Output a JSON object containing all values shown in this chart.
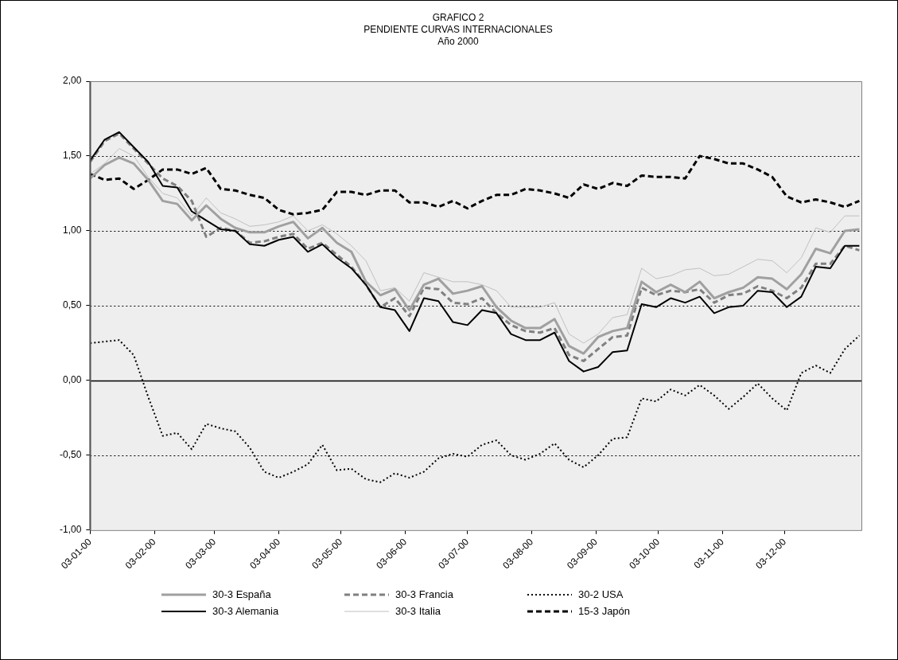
{
  "chart_data": {
    "type": "line",
    "title": "GRAFICO 2\nPENDIENTE CURVAS INTERNACIONALES\nAño 2000",
    "x": [
      "2000-01-03",
      "2000-01-10",
      "2000-01-17",
      "2000-01-24",
      "2000-01-31",
      "2000-02-07",
      "2000-02-14",
      "2000-02-21",
      "2000-02-28",
      "2000-03-06",
      "2000-03-13",
      "2000-03-20",
      "2000-03-27",
      "2000-04-03",
      "2000-04-10",
      "2000-04-17",
      "2000-04-24",
      "2000-05-01",
      "2000-05-08",
      "2000-05-15",
      "2000-05-22",
      "2000-05-29",
      "2000-06-05",
      "2000-06-12",
      "2000-06-19",
      "2000-06-26",
      "2000-07-03",
      "2000-07-10",
      "2000-07-17",
      "2000-07-24",
      "2000-07-31",
      "2000-08-07",
      "2000-08-14",
      "2000-08-21",
      "2000-08-28",
      "2000-09-04",
      "2000-09-11",
      "2000-09-18",
      "2000-09-25",
      "2000-10-02",
      "2000-10-09",
      "2000-10-16",
      "2000-10-23",
      "2000-10-30",
      "2000-11-06",
      "2000-11-13",
      "2000-11-20",
      "2000-11-27",
      "2000-12-04",
      "2000-12-11",
      "2000-12-18",
      "2000-12-25",
      "2001-01-01",
      "2001-01-08"
    ],
    "series": [
      {
        "name": "30-3 España",
        "color": "#a0a0a0",
        "line_style": "solid",
        "values": [
          1.35,
          1.44,
          1.49,
          1.45,
          1.34,
          1.2,
          1.18,
          1.07,
          1.17,
          1.08,
          1.02,
          0.99,
          0.99,
          1.03,
          1.06,
          0.95,
          1.02,
          0.92,
          0.86,
          0.66,
          0.57,
          0.61,
          0.47,
          0.64,
          0.68,
          0.58,
          0.6,
          0.63,
          0.49,
          0.4,
          0.35,
          0.35,
          0.41,
          0.23,
          0.18,
          0.29,
          0.33,
          0.35,
          0.66,
          0.59,
          0.64,
          0.59,
          0.66,
          0.55,
          0.59,
          0.62,
          0.69,
          0.68,
          0.61,
          0.71,
          0.88,
          0.85,
          1.0,
          1.01
        ]
      },
      {
        "name": "30-3 Alemania",
        "color": "#000000",
        "line_style": "solid",
        "values": [
          1.47,
          1.61,
          1.66,
          1.56,
          1.46,
          1.3,
          1.29,
          1.13,
          1.07,
          1.01,
          1.0,
          0.91,
          0.9,
          0.94,
          0.96,
          0.86,
          0.91,
          0.82,
          0.75,
          0.64,
          0.49,
          0.47,
          0.33,
          0.55,
          0.53,
          0.39,
          0.37,
          0.47,
          0.45,
          0.31,
          0.27,
          0.27,
          0.32,
          0.13,
          0.06,
          0.09,
          0.19,
          0.2,
          0.51,
          0.49,
          0.55,
          0.52,
          0.56,
          0.45,
          0.49,
          0.5,
          0.6,
          0.59,
          0.49,
          0.56,
          0.76,
          0.75,
          0.9,
          0.9
        ]
      },
      {
        "name": "30-3 Francia",
        "color": "#808080",
        "line_style": "dashed",
        "values": [
          1.46,
          1.6,
          1.65,
          1.55,
          1.45,
          1.35,
          1.3,
          1.2,
          0.96,
          1.02,
          1.0,
          0.92,
          0.93,
          0.96,
          0.98,
          0.88,
          0.92,
          0.84,
          0.76,
          0.64,
          0.49,
          0.55,
          0.43,
          0.62,
          0.61,
          0.52,
          0.51,
          0.55,
          0.45,
          0.37,
          0.33,
          0.32,
          0.35,
          0.17,
          0.13,
          0.21,
          0.29,
          0.3,
          0.62,
          0.57,
          0.6,
          0.59,
          0.61,
          0.52,
          0.57,
          0.58,
          0.63,
          0.6,
          0.55,
          0.62,
          0.78,
          0.78,
          0.9,
          0.87
        ]
      },
      {
        "name": "30-3 Italia",
        "color": "#c0c0c0",
        "line_style": "solid",
        "values": [
          1.38,
          1.45,
          1.55,
          1.5,
          1.36,
          1.25,
          1.22,
          1.1,
          1.22,
          1.12,
          1.08,
          1.03,
          1.04,
          1.06,
          1.1,
          1.0,
          1.04,
          0.98,
          0.9,
          0.8,
          0.6,
          0.62,
          0.53,
          0.72,
          0.69,
          0.66,
          0.66,
          0.64,
          0.6,
          0.49,
          0.49,
          0.49,
          0.52,
          0.31,
          0.25,
          0.31,
          0.42,
          0.44,
          0.75,
          0.68,
          0.7,
          0.74,
          0.75,
          0.7,
          0.71,
          0.76,
          0.81,
          0.8,
          0.72,
          0.82,
          1.02,
          0.99,
          1.1,
          1.1
        ]
      },
      {
        "name": "30-2 USA",
        "color": "#000000",
        "line_style": "dotted",
        "values": [
          0.25,
          0.26,
          0.27,
          0.17,
          -0.11,
          -0.37,
          -0.35,
          -0.46,
          -0.29,
          -0.32,
          -0.34,
          -0.45,
          -0.61,
          -0.65,
          -0.61,
          -0.56,
          -0.43,
          -0.6,
          -0.59,
          -0.66,
          -0.68,
          -0.62,
          -0.65,
          -0.61,
          -0.52,
          -0.49,
          -0.51,
          -0.43,
          -0.4,
          -0.5,
          -0.53,
          -0.49,
          -0.42,
          -0.53,
          -0.58,
          -0.5,
          -0.39,
          -0.38,
          -0.12,
          -0.14,
          -0.06,
          -0.1,
          -0.03,
          -0.1,
          -0.19,
          -0.11,
          -0.02,
          -0.12,
          -0.2,
          0.05,
          0.1,
          0.05,
          0.21,
          0.3
        ]
      },
      {
        "name": "15-3 Japón",
        "color": "#000000",
        "line_style": "dashed",
        "values": [
          1.38,
          1.34,
          1.35,
          1.28,
          1.34,
          1.41,
          1.41,
          1.38,
          1.42,
          1.28,
          1.27,
          1.24,
          1.22,
          1.14,
          1.11,
          1.12,
          1.14,
          1.26,
          1.26,
          1.24,
          1.27,
          1.27,
          1.19,
          1.19,
          1.16,
          1.2,
          1.15,
          1.2,
          1.24,
          1.24,
          1.28,
          1.27,
          1.25,
          1.22,
          1.31,
          1.28,
          1.32,
          1.3,
          1.37,
          1.36,
          1.36,
          1.35,
          1.5,
          1.48,
          1.45,
          1.45,
          1.41,
          1.36,
          1.23,
          1.19,
          1.21,
          1.19,
          1.16,
          1.2
        ]
      }
    ],
    "xlim": [
      "2000-01-03",
      "2001-01-09"
    ],
    "xticks": [
      {
        "value": "2000-01-03",
        "label": "03-01-00"
      },
      {
        "value": "2000-02-03",
        "label": "03-02-00"
      },
      {
        "value": "2000-03-03",
        "label": "03-03-00"
      },
      {
        "value": "2000-04-03",
        "label": "03-04-00"
      },
      {
        "value": "2000-05-03",
        "label": "03-05-00"
      },
      {
        "value": "2000-06-03",
        "label": "03-06-00"
      },
      {
        "value": "2000-07-03",
        "label": "03-07-00"
      },
      {
        "value": "2000-08-03",
        "label": "03-08-00"
      },
      {
        "value": "2000-09-03",
        "label": "03-09-00"
      },
      {
        "value": "2000-10-03",
        "label": "03-10-00"
      },
      {
        "value": "2000-11-03",
        "label": "03-11-00"
      },
      {
        "value": "2000-12-03",
        "label": "03-12-00"
      }
    ],
    "ylim": [
      -1,
      2
    ],
    "yticks": [
      {
        "value": 2,
        "label": "2,00"
      },
      {
        "value": 1.5,
        "label": "1,50"
      },
      {
        "value": 1,
        "label": "1,00"
      },
      {
        "value": 0.5,
        "label": "0,50"
      },
      {
        "value": 0,
        "label": "0,00"
      },
      {
        "value": -0.5,
        "label": "-0,50"
      },
      {
        "value": -1,
        "label": "-1,00"
      }
    ],
    "ref_lines": [
      {
        "axis": "y",
        "value": 0,
        "color": "#000000",
        "line_style": "solid"
      }
    ],
    "grid": "y",
    "legend": "bottom",
    "marker": "none"
  }
}
